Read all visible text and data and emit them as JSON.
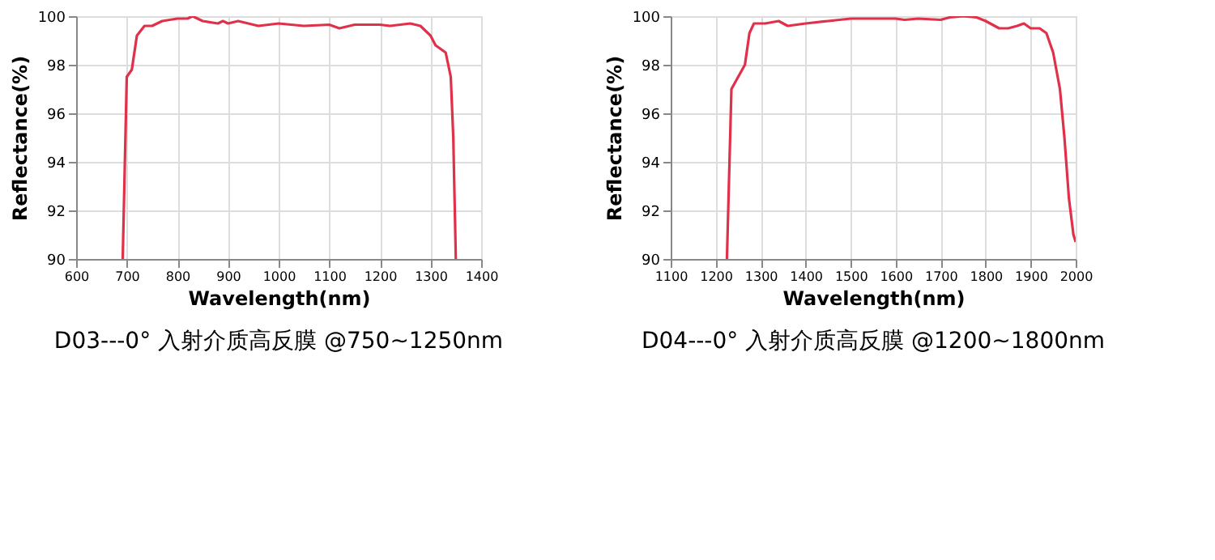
{
  "chart_data": [
    {
      "type": "line",
      "title": "D03---0° 入射介质高反膜 @750~1250nm",
      "xlabel": "Wavelength(nm)",
      "ylabel": "Reflectance(%)",
      "xlim": [
        600,
        1400
      ],
      "xticks": [
        600,
        700,
        800,
        900,
        1000,
        1100,
        1200,
        1300,
        1400
      ],
      "ylim": [
        90,
        100
      ],
      "yticks": [
        90,
        92,
        94,
        96,
        98,
        100
      ],
      "grid": true,
      "series": [
        {
          "color": "#e0304a",
          "x": [
            692,
            700,
            710,
            720,
            735,
            750,
            770,
            800,
            820,
            830,
            850,
            880,
            890,
            900,
            920,
            960,
            1000,
            1050,
            1100,
            1120,
            1150,
            1200,
            1220,
            1260,
            1280,
            1300,
            1310,
            1330,
            1340,
            1345,
            1350
          ],
          "values": [
            90,
            97.5,
            97.8,
            99.2,
            99.6,
            99.6,
            99.8,
            99.9,
            99.9,
            100,
            99.8,
            99.7,
            99.8,
            99.7,
            99.8,
            99.6,
            99.7,
            99.6,
            99.65,
            99.5,
            99.65,
            99.65,
            99.6,
            99.7,
            99.6,
            99.2,
            98.8,
            98.5,
            97.5,
            95,
            90
          ]
        }
      ]
    },
    {
      "type": "line",
      "title": "D04---0° 入射介质高反膜 @1200~1800nm",
      "xlabel": "Wavelength(nm)",
      "ylabel": "Reflectance(%)",
      "xlim": [
        1100,
        2000
      ],
      "xticks": [
        1100,
        1200,
        1300,
        1400,
        1500,
        1600,
        1700,
        1800,
        1900,
        2000
      ],
      "ylim": [
        90,
        100
      ],
      "yticks": [
        90,
        92,
        94,
        96,
        98,
        100
      ],
      "grid": true,
      "series": [
        {
          "color": "#e0304a",
          "x": [
            1225,
            1235,
            1250,
            1265,
            1275,
            1285,
            1310,
            1340,
            1360,
            1400,
            1450,
            1500,
            1550,
            1600,
            1620,
            1650,
            1700,
            1720,
            1750,
            1780,
            1800,
            1830,
            1850,
            1870,
            1885,
            1900,
            1920,
            1935,
            1950,
            1965,
            1975,
            1985,
            1995,
            2000
          ],
          "values": [
            90,
            97,
            97.5,
            98,
            99.3,
            99.7,
            99.7,
            99.8,
            99.6,
            99.7,
            99.8,
            99.9,
            99.9,
            99.9,
            99.85,
            99.9,
            99.85,
            99.95,
            100,
            99.95,
            99.8,
            99.5,
            99.5,
            99.6,
            99.7,
            99.5,
            99.5,
            99.3,
            98.5,
            97,
            95,
            92.5,
            91,
            90.7
          ]
        }
      ]
    }
  ]
}
